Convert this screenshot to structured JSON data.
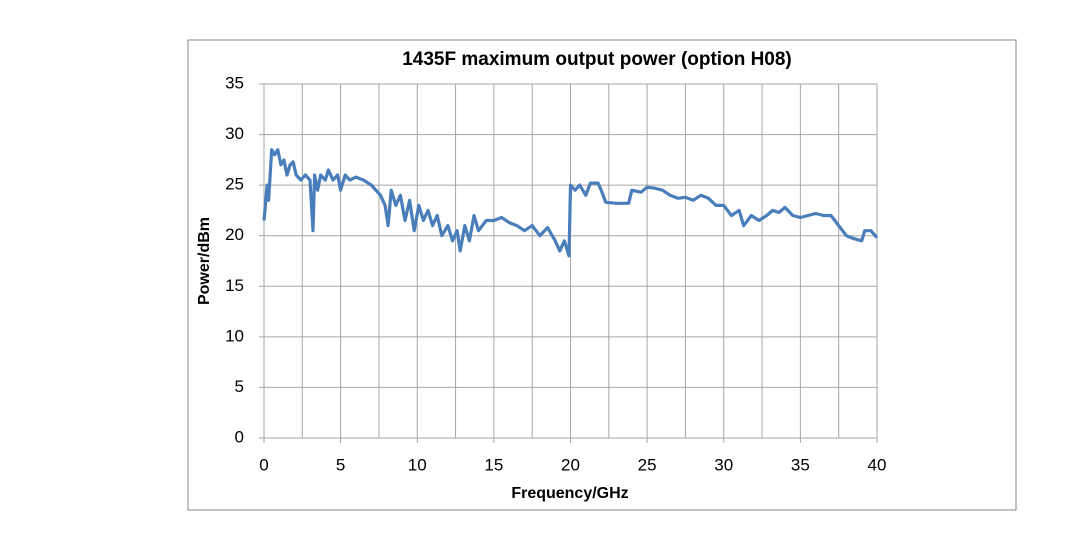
{
  "chart_data": {
    "type": "line",
    "title": "1435F maximum output power (option H08)",
    "xlabel": "Frequency/GHz",
    "ylabel": "Power/dBm",
    "xlim": [
      0,
      40
    ],
    "xticks": [
      0,
      5,
      10,
      15,
      20,
      25,
      30,
      35,
      40
    ],
    "x_minor_grid": [
      2.5,
      7.5,
      12.5,
      17.5,
      22.5,
      27.5,
      32.5,
      37.5
    ],
    "ylim": [
      0,
      35
    ],
    "yticks": [
      0,
      5,
      10,
      15,
      20,
      25,
      30,
      35
    ],
    "grid": true,
    "series": [
      {
        "name": "Power",
        "color": "#4a7ebb",
        "x": [
          0,
          0.2,
          0.3,
          0.5,
          0.7,
          0.9,
          1.1,
          1.3,
          1.5,
          1.7,
          1.9,
          2.1,
          2.4,
          2.7,
          3.0,
          3.2,
          3.3,
          3.5,
          3.7,
          4.0,
          4.2,
          4.5,
          4.8,
          5.0,
          5.3,
          5.6,
          6.0,
          6.5,
          7.0,
          7.3,
          7.6,
          7.9,
          8.1,
          8.3,
          8.6,
          8.9,
          9.2,
          9.5,
          9.8,
          10.1,
          10.4,
          10.7,
          11.0,
          11.3,
          11.6,
          12.0,
          12.3,
          12.6,
          12.8,
          13.1,
          13.4,
          13.7,
          14.0,
          14.5,
          15.0,
          15.5,
          16.0,
          16.5,
          17.0,
          17.5,
          18.0,
          18.5,
          19.0,
          19.3,
          19.6,
          19.9,
          20.0,
          20.3,
          20.6,
          21.0,
          21.3,
          21.8,
          22.0,
          22.3,
          23.0,
          23.8,
          24.0,
          24.6,
          25.0,
          25.5,
          26.0,
          26.5,
          27.0,
          27.5,
          28.0,
          28.5,
          29.0,
          29.5,
          30.0,
          30.5,
          31.0,
          31.3,
          31.8,
          32.3,
          32.8,
          33.2,
          33.6,
          34.0,
          34.5,
          35.0,
          35.5,
          36.0,
          36.5,
          37.0,
          37.5,
          38.0,
          38.5,
          39.0,
          39.2,
          39.6,
          40.0
        ],
        "values": [
          21.5,
          25,
          23.5,
          28.5,
          28,
          28.5,
          27,
          27.5,
          26,
          27,
          27.3,
          26,
          25.5,
          26,
          25.5,
          20.5,
          26,
          24.5,
          26,
          25.5,
          26.5,
          25.5,
          26,
          24.5,
          26,
          25.5,
          25.8,
          25.5,
          25,
          24.5,
          24,
          23,
          21,
          24.5,
          23,
          24,
          21.5,
          23.5,
          20.5,
          23,
          21.5,
          22.5,
          21,
          22,
          20,
          21,
          19.5,
          20.5,
          18.5,
          21,
          19.5,
          22,
          20.5,
          21.5,
          21.5,
          21.8,
          21.3,
          21,
          20.5,
          21,
          20,
          20.8,
          19.5,
          18.5,
          19.5,
          18,
          25,
          24.5,
          25,
          24,
          25.2,
          25.2,
          24.5,
          23.3,
          23.2,
          23.2,
          24.5,
          24.3,
          24.8,
          24.7,
          24.5,
          24,
          23.7,
          23.8,
          23.5,
          24,
          23.7,
          23,
          23,
          22,
          22.5,
          21,
          22,
          21.5,
          22,
          22.5,
          22.3,
          22.8,
          22,
          21.8,
          22,
          22.2,
          22,
          22,
          21,
          20,
          19.7,
          19.5,
          20.5,
          20.5,
          19.8
        ]
      }
    ]
  }
}
